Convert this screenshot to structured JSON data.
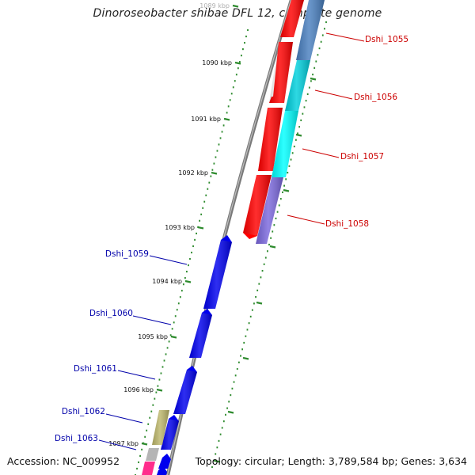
{
  "title": "Dinoroseobacter shibae DFL 12, complete genome",
  "footer": {
    "accession": "Accession: NC_009952",
    "topology": "Topology: circular; Length: 3,789,584 bp; Genes: 3,634"
  },
  "colors": {
    "backbone": "#888888",
    "tick": "#2e8b2e",
    "right_label": "#cc0000",
    "left_label": "#0000aa",
    "red_gene": "#ff0000",
    "steelblue_gene": "#4a80c0",
    "cyan_gene": "#00e5ee",
    "purple_gene": "#7b68dd",
    "blue_gene": "#0000ee",
    "olive_gene": "#bdb76b",
    "grey_gene": "#b5b5b5",
    "pink_gene": "#ff2d8c"
  },
  "ticks": [
    {
      "label": "1089 kbp"
    },
    {
      "label": "1090 kbp"
    },
    {
      "label": "1091 kbp"
    },
    {
      "label": "1092 kbp"
    },
    {
      "label": "1093 kbp"
    },
    {
      "label": "1094 kbp"
    },
    {
      "label": "1095 kbp"
    },
    {
      "label": "1096 kbp"
    },
    {
      "label": "1097 kbp"
    }
  ],
  "genes_right": [
    {
      "label": "Dshi_1055"
    },
    {
      "label": "Dshi_1056"
    },
    {
      "label": "Dshi_1057"
    },
    {
      "label": "Dshi_1058"
    }
  ],
  "genes_left": [
    {
      "label": "Dshi_1059"
    },
    {
      "label": "Dshi_1060"
    },
    {
      "label": "Dshi_1061"
    },
    {
      "label": "Dshi_1062"
    },
    {
      "label": "Dshi_1063"
    }
  ]
}
